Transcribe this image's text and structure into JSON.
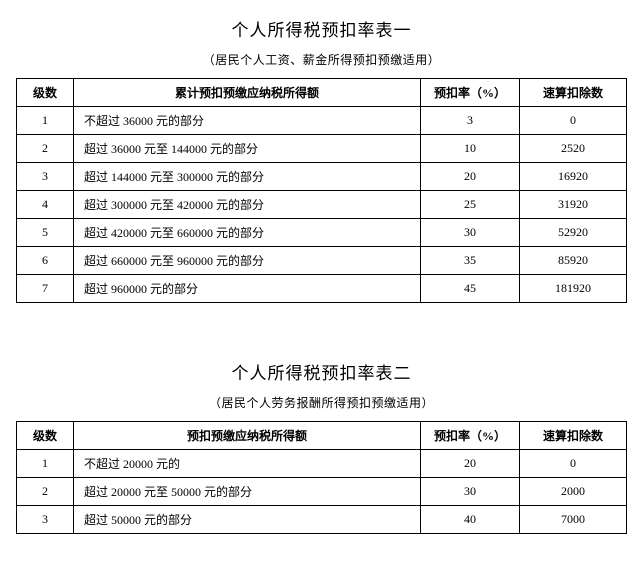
{
  "table1": {
    "title": "个人所得税预扣率表一",
    "subtitle": "（居民个人工资、薪金所得预扣预缴适用）",
    "columns": [
      "级数",
      "累计预扣预缴应纳税所得额",
      "预扣率（%）",
      "速算扣除数"
    ],
    "rows": [
      [
        "1",
        "不超过 36000 元的部分",
        "3",
        "0"
      ],
      [
        "2",
        "超过 36000 元至 144000 元的部分",
        "10",
        "2520"
      ],
      [
        "3",
        "超过 144000 元至 300000 元的部分",
        "20",
        "16920"
      ],
      [
        "4",
        "超过 300000 元至 420000 元的部分",
        "25",
        "31920"
      ],
      [
        "5",
        "超过 420000 元至 660000 元的部分",
        "30",
        "52920"
      ],
      [
        "6",
        "超过 660000 元至 960000 元的部分",
        "35",
        "85920"
      ],
      [
        "7",
        "超过 960000 元的部分",
        "45",
        "181920"
      ]
    ]
  },
  "table2": {
    "title": "个人所得税预扣率表二",
    "subtitle": "（居民个人劳务报酬所得预扣预缴适用）",
    "columns": [
      "级数",
      "预扣预缴应纳税所得额",
      "预扣率（%）",
      "速算扣除数"
    ],
    "rows": [
      [
        "1",
        "不超过 20000 元的",
        "20",
        "0"
      ],
      [
        "2",
        "超过 20000 元至 50000 元的部分",
        "30",
        "2000"
      ],
      [
        "3",
        "超过 50000 元的部分",
        "40",
        "7000"
      ]
    ]
  }
}
